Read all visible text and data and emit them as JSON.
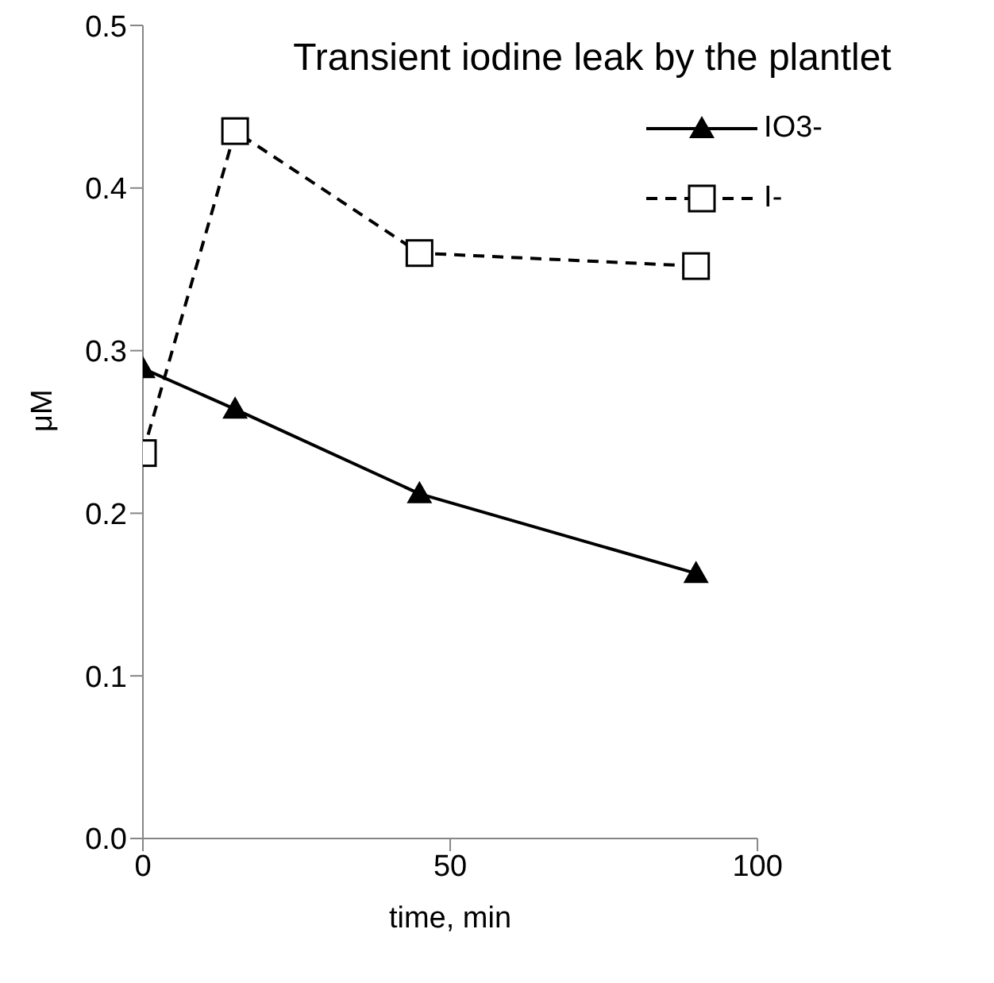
{
  "chart_data": {
    "type": "line",
    "title": "Transient iodine leak by the plantlet",
    "xlabel": "time, min",
    "ylabel": "μM",
    "x": [
      0,
      15,
      45,
      90
    ],
    "series": [
      {
        "name": "IO3-",
        "color": "#000000",
        "values": [
          0.289,
          0.264,
          0.212,
          0.163
        ],
        "marker": "triangle",
        "line_style": "solid"
      },
      {
        "name": "I-",
        "color": "#000000",
        "values": [
          0.237,
          0.435,
          0.36,
          0.352
        ],
        "marker": "square",
        "line_style": "dashed"
      }
    ],
    "xlim": [
      0,
      100
    ],
    "xticks": [
      0,
      50,
      100
    ],
    "ylim": [
      0,
      0.5
    ],
    "yticks": [
      {
        "value": 0,
        "label": "0.0"
      },
      0.1,
      0.2,
      0.3,
      0.4,
      0.5
    ],
    "grid": false,
    "legend": "top right"
  }
}
